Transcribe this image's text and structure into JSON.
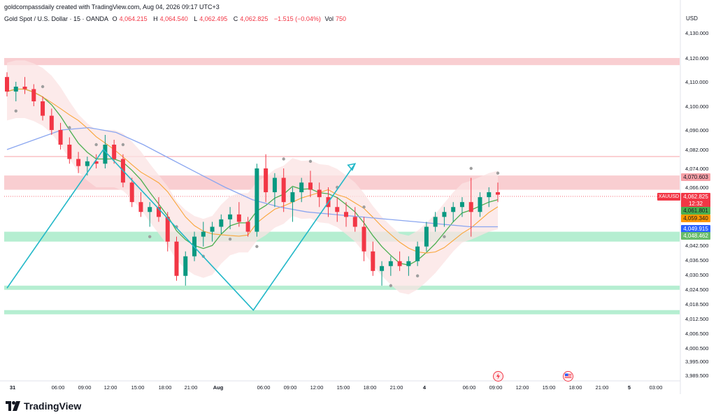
{
  "credit": "goldcompassdaily created with TradingView.com, Aug 04, 2026 09:17 UTC+3",
  "header": {
    "symbol": "Gold Spot / U.S. Dollar · 15 · OANDA",
    "o_label": "O",
    "o": "4,064.215",
    "h_label": "H",
    "h": "4,064.540",
    "l_label": "L",
    "l": "4,062.495",
    "c_label": "C",
    "c": "4,062.825",
    "change": "−1.515 (−0.04%)",
    "vol_label": "Vol",
    "vol": "750"
  },
  "currency": "USD",
  "price_labels": {
    "pair": "XAUUSD",
    "current": "4,062.825",
    "countdown": "12:32",
    "zone_top": "4,070.603",
    "green1": "4,061.801",
    "orange": "4,059.340",
    "blue": "4,049.915",
    "green2": "4,048.462"
  },
  "colors": {
    "red_zone": "#f8c6c9",
    "green_zone": "#a8ebc9",
    "envelope": "#fbe3e3",
    "envelope_green": "#dff3e5",
    "up_candle": "#089981",
    "down_candle": "#f23645",
    "line_green": "#4caf50",
    "line_orange": "#f9a63a",
    "line_blue": "#8aa6f0",
    "pattern": "#22b8c8",
    "dots": "#9e9e9e",
    "current_price": "#f23645",
    "tag_green": "#4caf50",
    "tag_orange": "#ff9800",
    "tag_blue": "#2962ff",
    "tag_green2": "#66bb6a"
  },
  "brand": "TradingView",
  "icons": [
    "lightning-event-icon",
    "us-flag-event-icon"
  ],
  "chart_data": {
    "type": "candlestick",
    "title": "Gold Spot / U.S. Dollar · 15 · OANDA",
    "y_ticks": [
      4130,
      4120,
      4110,
      4100,
      4090,
      4082,
      4074,
      4066,
      4042.5,
      4036.5,
      4030.5,
      4024.5,
      4018.5,
      4012.5,
      4006.5,
      4000.5,
      3995,
      3989.5
    ],
    "y_tick_labels": [
      "4,130.000",
      "4,120.000",
      "4,110.000",
      "4,100.000",
      "4,090.000",
      "4,082.000",
      "4,074.000",
      "4,066.000",
      "4,042.500",
      "4,036.500",
      "4,030.500",
      "4,024.500",
      "4,018.500",
      "4,012.500",
      "4,006.500",
      "4,000.500",
      "3,995.000",
      "3,989.500"
    ],
    "x_ticks": [
      "31",
      "06:00",
      "09:00",
      "12:00",
      "15:00",
      "18:00",
      "21:00",
      "Aug",
      "06:00",
      "09:00",
      "12:00",
      "15:00",
      "18:00",
      "21:00",
      "4",
      "06:00",
      "09:00",
      "12:00",
      "15:00",
      "18:00",
      "21:00",
      "5",
      "03:00"
    ],
    "zones": [
      {
        "kind": "resistance",
        "from": 4117,
        "to": 4120
      },
      {
        "kind": "resistance",
        "from": 4065,
        "to": 4071
      },
      {
        "kind": "support",
        "from": 4044,
        "to": 4048
      },
      {
        "kind": "support",
        "from": 4025,
        "to": 4026
      },
      {
        "kind": "support",
        "from": 4015,
        "to": 4016
      }
    ],
    "pattern_points": [
      [
        0.0,
        4025
      ],
      [
        9.0,
        4082
      ],
      [
        23.0,
        4016
      ],
      [
        32.5,
        4076
      ]
    ],
    "candles_ohlc": [
      [
        4112,
        4114,
        4104,
        4106
      ],
      [
        4106,
        4110,
        4102,
        4108
      ],
      [
        4108,
        4112,
        4105,
        4107
      ],
      [
        4107,
        4109,
        4100,
        4102
      ],
      [
        4102,
        4104,
        4094,
        4096
      ],
      [
        4096,
        4099,
        4088,
        4090
      ],
      [
        4090,
        4093,
        4082,
        4084
      ],
      [
        4084,
        4087,
        4076,
        4078
      ],
      [
        4078,
        4081,
        4072,
        4075
      ],
      [
        4075,
        4079,
        4071,
        4077
      ],
      [
        4077,
        4080,
        4074,
        4076
      ],
      [
        4076,
        4088,
        4074,
        4084
      ],
      [
        4084,
        4086,
        4076,
        4078
      ],
      [
        4078,
        4080,
        4066,
        4068
      ],
      [
        4068,
        4070,
        4058,
        4060
      ],
      [
        4060,
        4064,
        4054,
        4056
      ],
      [
        4056,
        4060,
        4050,
        4058
      ],
      [
        4058,
        4062,
        4052,
        4054
      ],
      [
        4054,
        4056,
        4040,
        4044
      ],
      [
        4044,
        4046,
        4028,
        4030
      ],
      [
        4030,
        4040,
        4026,
        4038
      ],
      [
        4038,
        4048,
        4036,
        4046
      ],
      [
        4046,
        4052,
        4042,
        4048
      ],
      [
        4048,
        4052,
        4044,
        4050
      ],
      [
        4050,
        4055,
        4047,
        4053
      ],
      [
        4053,
        4058,
        4049,
        4055
      ],
      [
        4055,
        4060,
        4050,
        4052
      ],
      [
        4052,
        4054,
        4046,
        4048
      ],
      [
        4048,
        4076,
        4046,
        4074
      ],
      [
        4074,
        4080,
        4060,
        4064
      ],
      [
        4064,
        4072,
        4058,
        4070
      ],
      [
        4070,
        4074,
        4056,
        4060
      ],
      [
        4060,
        4066,
        4052,
        4064
      ],
      [
        4064,
        4070,
        4060,
        4068
      ],
      [
        4068,
        4073,
        4062,
        4065
      ],
      [
        4065,
        4068,
        4058,
        4062
      ],
      [
        4062,
        4066,
        4054,
        4058
      ],
      [
        4058,
        4062,
        4052,
        4056
      ],
      [
        4056,
        4060,
        4050,
        4054
      ],
      [
        4054,
        4058,
        4048,
        4050
      ],
      [
        4050,
        4054,
        4036,
        4040
      ],
      [
        4040,
        4044,
        4030,
        4032
      ],
      [
        4032,
        4036,
        4026,
        4034
      ],
      [
        4034,
        4038,
        4030,
        4036
      ],
      [
        4036,
        4040,
        4032,
        4034
      ],
      [
        4034,
        4038,
        4030,
        4036
      ],
      [
        4036,
        4044,
        4034,
        4042
      ],
      [
        4042,
        4052,
        4040,
        4050
      ],
      [
        4050,
        4056,
        4048,
        4054
      ],
      [
        4054,
        4058,
        4050,
        4056
      ],
      [
        4056,
        4060,
        4052,
        4058
      ],
      [
        4058,
        4062,
        4054,
        4060
      ],
      [
        4060,
        4070,
        4046,
        4056
      ],
      [
        4056,
        4064,
        4054,
        4062
      ],
      [
        4062,
        4066,
        4058,
        4064
      ],
      [
        4064,
        4068,
        4060,
        4063
      ]
    ]
  }
}
